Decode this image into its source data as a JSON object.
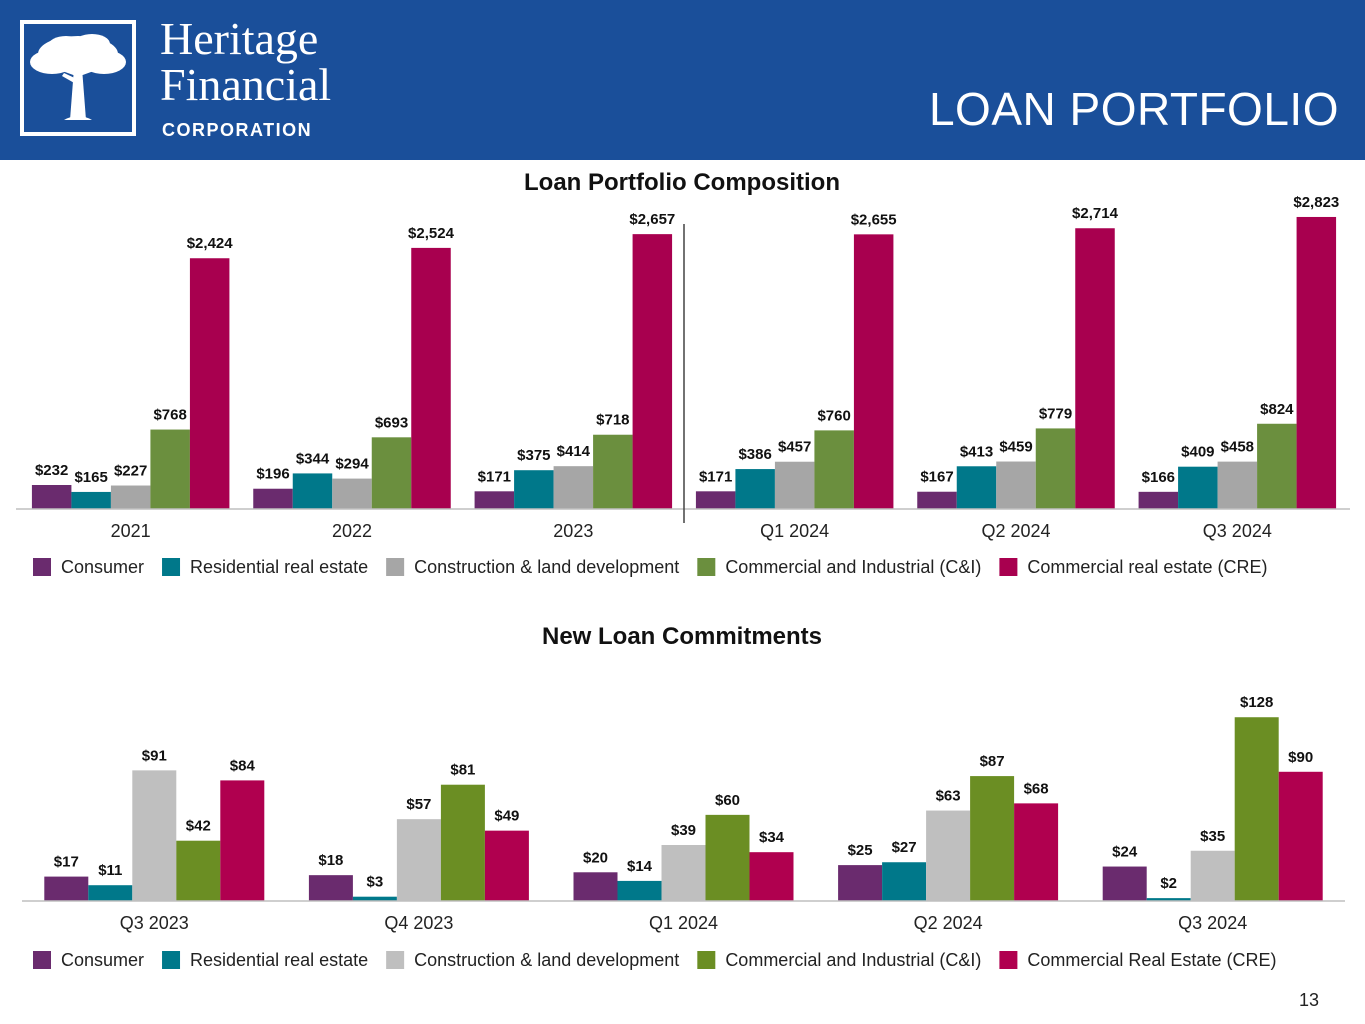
{
  "header": {
    "company_line1": "Heritage",
    "company_line2": "Financial",
    "company_line3": "CORPORATION",
    "page_title": "LOAN PORTFOLIO",
    "logo_icon": "tree-icon",
    "background_color": "#1a4f9a"
  },
  "page_number": "13",
  "chart_data": [
    {
      "type": "bar",
      "title": "Loan Portfolio Composition",
      "categories": [
        "2021",
        "2022",
        "2023",
        "Q1 2024",
        "Q2 2024",
        "Q3 2024"
      ],
      "series": [
        {
          "name": "Consumer",
          "color": "#6a2b6e",
          "values": [
            232,
            196,
            171,
            171,
            167,
            166
          ],
          "labels": [
            "$232",
            "$196",
            "$171",
            "$171",
            "$167",
            "$166"
          ]
        },
        {
          "name": "Residential real estate",
          "color": "#00788a",
          "values": [
            165,
            344,
            375,
            386,
            413,
            409
          ],
          "labels": [
            "$165",
            "$344",
            "$375",
            "$386",
            "$413",
            "$409"
          ]
        },
        {
          "name": "Construction & land development",
          "color": "#a6a6a6",
          "values": [
            227,
            294,
            414,
            457,
            459,
            458
          ],
          "labels": [
            "$227",
            "$294",
            "$414",
            "$457",
            "$459",
            "$458"
          ]
        },
        {
          "name": "Commercial and Industrial (C&I)",
          "color": "#6b8f3e",
          "values": [
            768,
            693,
            718,
            760,
            779,
            824
          ],
          "labels": [
            "$768",
            "$693",
            "$718",
            "$760",
            "$779",
            "$824"
          ]
        },
        {
          "name": "Commercial real estate (CRE)",
          "color": "#a8004f",
          "values": [
            2424,
            2524,
            2657,
            2655,
            2714,
            2823
          ],
          "labels": [
            "$2,424",
            "$2,524",
            "$2,657",
            "$2,655",
            "$2,714",
            "$2,823"
          ]
        }
      ],
      "ylim": [
        0,
        2900
      ],
      "xlabel": "",
      "ylabel": "",
      "grid": false,
      "legend": "bottom",
      "annotations": [
        "vertical divider between 2023 and Q1 2024"
      ]
    },
    {
      "type": "bar",
      "title": "New Loan Commitments",
      "categories": [
        "Q3 2023",
        "Q4 2023",
        "Q1 2024",
        "Q2 2024",
        "Q3 2024"
      ],
      "series": [
        {
          "name": "Consumer",
          "color": "#6a2b6e",
          "values": [
            17,
            18,
            20,
            25,
            24
          ],
          "labels": [
            "$17",
            "$18",
            "$20",
            "$25",
            "$24"
          ]
        },
        {
          "name": "Residential real estate",
          "color": "#00788a",
          "values": [
            11,
            3,
            14,
            27,
            2
          ],
          "labels": [
            "$11",
            "$3",
            "$14",
            "$27",
            "$2"
          ]
        },
        {
          "name": "Construction & land development",
          "color": "#bfbfbf",
          "values": [
            91,
            57,
            39,
            63,
            35
          ],
          "labels": [
            "$91",
            "$57",
            "$39",
            "$63",
            "$35"
          ]
        },
        {
          "name": "Commercial and Industrial (C&I)",
          "color": "#6b8e23",
          "values": [
            42,
            81,
            60,
            87,
            128
          ],
          "labels": [
            "$42",
            "$81",
            "$60",
            "$87",
            "$128"
          ]
        },
        {
          "name": "Commercial Real Estate (CRE)",
          "color": "#b0004f",
          "values": [
            84,
            49,
            34,
            68,
            90
          ],
          "labels": [
            "$84",
            "$49",
            "$34",
            "$68",
            "$90"
          ]
        }
      ],
      "ylim": [
        0,
        140
      ],
      "xlabel": "",
      "ylabel": "",
      "grid": false,
      "legend": "bottom"
    }
  ]
}
